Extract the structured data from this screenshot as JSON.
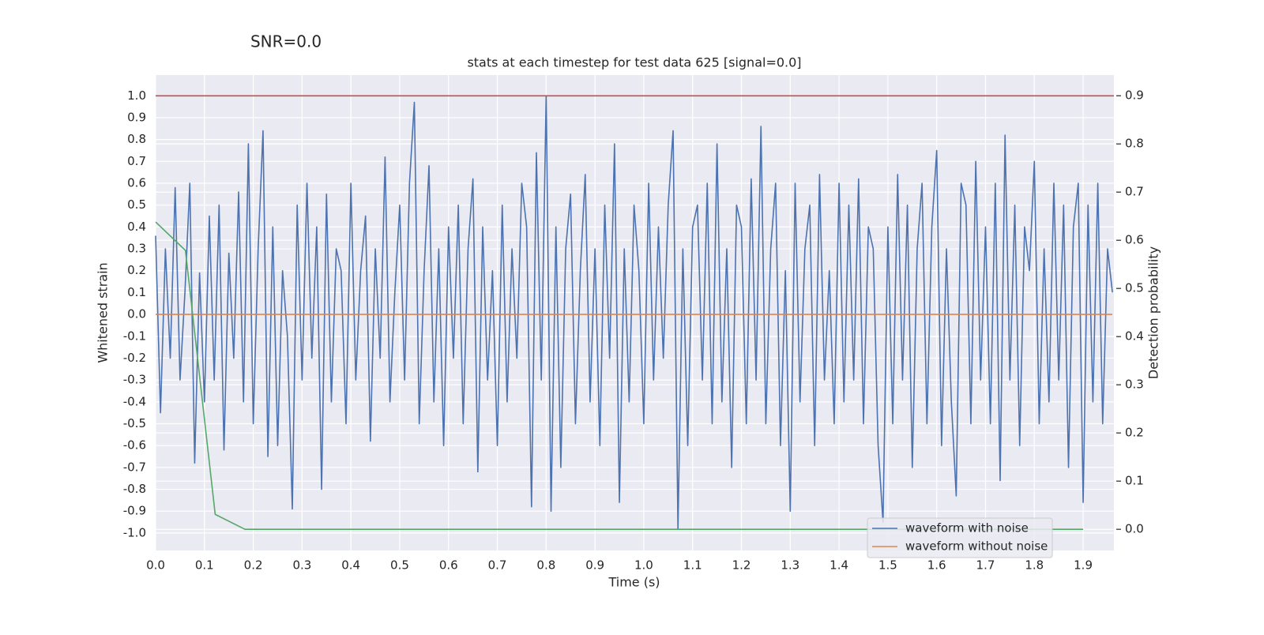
{
  "chart_data": {
    "type": "line",
    "suptitle": "SNR=0.0",
    "title": "stats at each timestep for test data 625 [signal=0.0]",
    "xlabel": "Time (s)",
    "ylabel": "Whitened strain",
    "y2label": "Detection probability",
    "xlim": [
      0,
      1.963
    ],
    "ylim": [
      -1.08,
      1.095
    ],
    "y2lim": [
      -0.044,
      0.943
    ],
    "xticks": [
      {
        "value": 0,
        "label": "0.0"
      },
      0.1,
      0.2,
      0.3,
      0.4,
      0.5,
      0.6,
      0.7,
      0.8,
      0.9,
      {
        "value": 1,
        "label": "1.0"
      },
      1.1,
      1.2,
      1.3,
      1.4,
      1.5,
      1.6,
      1.7,
      1.8,
      1.9
    ],
    "yticks": [
      {
        "value": 1,
        "label": "1.0"
      },
      0.9,
      0.8,
      0.7,
      0.6,
      0.5,
      0.4,
      0.3,
      0.2,
      0.1,
      {
        "value": 0,
        "label": "0.0"
      },
      -0.1,
      -0.2,
      -0.3,
      -0.4,
      -0.5,
      -0.6,
      -0.7,
      -0.8,
      -0.9,
      {
        "value": -1,
        "label": "-1.0"
      }
    ],
    "y2ticks": [
      0.9,
      0.8,
      0.7,
      0.6,
      0.5,
      0.4,
      0.3,
      0.2,
      0.1,
      {
        "value": 0,
        "label": "0.0"
      }
    ],
    "grid": true,
    "legend": "lower right",
    "hlines": [
      {
        "y": 1.0,
        "color": "#c44e52"
      }
    ],
    "series": [
      {
        "name": "waveform with noise",
        "color": "#4c72b0",
        "x": [
          0,
          0.01,
          0.02,
          0.03,
          0.04,
          0.05,
          0.06,
          0.07,
          0.08,
          0.09,
          0.1,
          0.11,
          0.12,
          0.13,
          0.14,
          0.15,
          0.16,
          0.17,
          0.18,
          0.19,
          0.2,
          0.21,
          0.22,
          0.23,
          0.24,
          0.25,
          0.26,
          0.27,
          0.28,
          0.29,
          0.3,
          0.31,
          0.32,
          0.33,
          0.34,
          0.35,
          0.36,
          0.37,
          0.38,
          0.39,
          0.4,
          0.41,
          0.42,
          0.43,
          0.44,
          0.45,
          0.46,
          0.47,
          0.48,
          0.49,
          0.5,
          0.51,
          0.52,
          0.53,
          0.54,
          0.55,
          0.56,
          0.57,
          0.58,
          0.59,
          0.6,
          0.61,
          0.62,
          0.63,
          0.64,
          0.65,
          0.66,
          0.67,
          0.68,
          0.69,
          0.7,
          0.71,
          0.72,
          0.73,
          0.74,
          0.75,
          0.76,
          0.77,
          0.78,
          0.79,
          0.8,
          0.81,
          0.82,
          0.83,
          0.84,
          0.85,
          0.86,
          0.87,
          0.88,
          0.89,
          0.9,
          0.91,
          0.92,
          0.93,
          0.94,
          0.95,
          0.96,
          0.97,
          0.98,
          0.99,
          1,
          1.01,
          1.02,
          1.03,
          1.04,
          1.05,
          1.06,
          1.07,
          1.08,
          1.09,
          1.1,
          1.11,
          1.12,
          1.13,
          1.14,
          1.15,
          1.16,
          1.17,
          1.18,
          1.19,
          1.2,
          1.21,
          1.22,
          1.23,
          1.24,
          1.25,
          1.26,
          1.27,
          1.28,
          1.29,
          1.3,
          1.31,
          1.32,
          1.33,
          1.34,
          1.35,
          1.36,
          1.37,
          1.38,
          1.39,
          1.4,
          1.41,
          1.42,
          1.43,
          1.44,
          1.45,
          1.46,
          1.47,
          1.48,
          1.49,
          1.5,
          1.51,
          1.52,
          1.53,
          1.54,
          1.55,
          1.56,
          1.57,
          1.58,
          1.59,
          1.6,
          1.61,
          1.62,
          1.63,
          1.64,
          1.65,
          1.66,
          1.67,
          1.68,
          1.69,
          1.7,
          1.71,
          1.72,
          1.73,
          1.74,
          1.75,
          1.76,
          1.77,
          1.78,
          1.79,
          1.8,
          1.81,
          1.82,
          1.83,
          1.84,
          1.85,
          1.86,
          1.87,
          1.88,
          1.89,
          1.9,
          1.91,
          1.92,
          1.93,
          1.94,
          1.95,
          1.96
        ],
        "values": [
          0.36,
          -0.45,
          0.3,
          -0.2,
          0.58,
          -0.3,
          0.1,
          0.6,
          -0.68,
          0.19,
          -0.4,
          0.45,
          -0.3,
          0.5,
          -0.62,
          0.28,
          -0.2,
          0.56,
          -0.4,
          0.78,
          -0.5,
          0.3,
          0.84,
          -0.65,
          0.4,
          -0.6,
          0.2,
          -0.1,
          -0.89,
          0.5,
          -0.3,
          0.6,
          -0.2,
          0.4,
          -0.8,
          0.55,
          -0.4,
          0.3,
          0.2,
          -0.5,
          0.6,
          -0.3,
          0.2,
          0.45,
          -0.58,
          0.3,
          -0.2,
          0.72,
          -0.4,
          0.1,
          0.5,
          -0.3,
          0.6,
          0.97,
          -0.5,
          0.2,
          0.68,
          -0.4,
          0.3,
          -0.6,
          0.4,
          -0.2,
          0.5,
          -0.5,
          0.3,
          0.62,
          -0.72,
          0.4,
          -0.3,
          0.2,
          -0.6,
          0.5,
          -0.4,
          0.3,
          -0.2,
          0.6,
          0.4,
          -0.88,
          0.74,
          -0.3,
          1.0,
          -0.9,
          0.4,
          -0.7,
          0.3,
          0.55,
          -0.5,
          0.2,
          0.64,
          -0.4,
          0.3,
          -0.6,
          0.5,
          -0.2,
          0.78,
          -0.86,
          0.3,
          -0.4,
          0.5,
          0.2,
          -0.5,
          0.6,
          -0.3,
          0.4,
          -0.2,
          0.5,
          0.84,
          -0.98,
          0.3,
          -0.6,
          0.4,
          0.5,
          -0.3,
          0.6,
          -0.5,
          0.78,
          -0.4,
          0.3,
          -0.7,
          0.5,
          0.4,
          -0.5,
          0.62,
          -0.3,
          0.86,
          -0.5,
          0.3,
          0.6,
          -0.6,
          0.2,
          -0.9,
          0.6,
          -0.4,
          0.3,
          0.5,
          -0.6,
          0.64,
          -0.3,
          0.2,
          -0.5,
          0.6,
          -0.4,
          0.5,
          -0.3,
          0.62,
          -0.5,
          0.4,
          0.3,
          -0.6,
          -0.95,
          0.4,
          -0.5,
          0.64,
          -0.3,
          0.5,
          -0.7,
          0.3,
          0.6,
          -0.5,
          0.4,
          0.75,
          -0.6,
          0.3,
          -0.4,
          -0.83,
          0.6,
          0.5,
          -0.5,
          0.7,
          -0.3,
          0.4,
          -0.5,
          0.6,
          -0.76,
          0.82,
          -0.3,
          0.5,
          -0.6,
          0.4,
          0.2,
          0.7,
          -0.5,
          0.3,
          -0.4,
          0.6,
          -0.3,
          0.5,
          -0.7,
          0.4,
          0.6,
          -0.86,
          0.5,
          -0.4,
          0.6,
          -0.5,
          0.3,
          0.1
        ]
      },
      {
        "name": "waveform without noise",
        "color": "#dd8452",
        "x": [
          0,
          1.96
        ],
        "values": [
          0,
          0
        ]
      },
      {
        "color": "#55a868",
        "axis": "y2",
        "x": [
          0,
          0.061,
          0.122,
          0.183,
          1.9
        ],
        "values": [
          0.638,
          0.579,
          0.031,
          0,
          0
        ]
      }
    ]
  }
}
